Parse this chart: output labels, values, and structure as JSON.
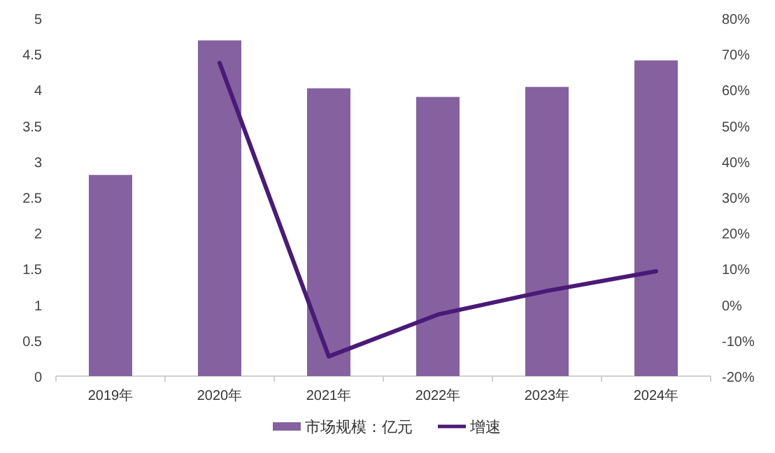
{
  "chart_data": {
    "type": "bar",
    "categories": [
      "2019年",
      "2020年",
      "2021年",
      "2022年",
      "2023年",
      "2024年"
    ],
    "series": [
      {
        "name": "市场规模：亿元",
        "color": "#8561a0",
        "values": [
          2.81,
          4.69,
          4.02,
          3.9,
          4.04,
          4.41
        ]
      },
      {
        "name": "增速",
        "type": "line",
        "axis": "y2",
        "color": "#4a1a78",
        "values": [
          null,
          67.5,
          -14.5,
          -2.8,
          3.8,
          9.3
        ]
      }
    ],
    "ylim": [
      0,
      5
    ],
    "yticks": [
      0,
      {
        "value": 0.5,
        "label": "0.5"
      },
      1,
      {
        "value": 1.5,
        "label": "1.5"
      },
      2,
      {
        "value": 2.5,
        "label": "2.5"
      },
      3,
      {
        "value": 3.5,
        "label": "3.5"
      },
      4,
      {
        "value": 4.5,
        "label": "4.5"
      },
      5
    ],
    "y2lim": [
      -20,
      80
    ],
    "y2ticks": [
      {
        "value": -20,
        "label": "-20%"
      },
      {
        "value": -10,
        "label": "-10%"
      },
      {
        "value": 0,
        "label": "0%"
      },
      {
        "value": 10,
        "label": "10%"
      },
      {
        "value": 20,
        "label": "20%"
      },
      {
        "value": 30,
        "label": "30%"
      },
      {
        "value": 40,
        "label": "40%"
      },
      {
        "value": 50,
        "label": "50%"
      },
      {
        "value": 60,
        "label": "60%"
      },
      {
        "value": 70,
        "label": "70%"
      },
      {
        "value": 80,
        "label": "80%"
      }
    ],
    "grid": false,
    "legend": "bottom"
  }
}
